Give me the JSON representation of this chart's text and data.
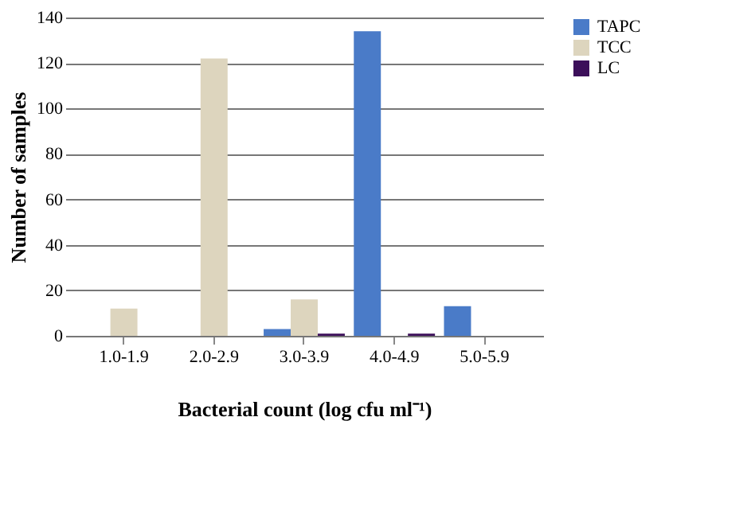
{
  "chart_data": {
    "type": "bar",
    "xlabel": "Bacterial count (log cfu ml⁻¹)",
    "ylabel": "Number of samples",
    "categories": [
      "1.0-1.9",
      "2.0-2.9",
      "3.0-3.9",
      "4.0-4.9",
      "5.0-5.9"
    ],
    "series": [
      {
        "name": "TAPC",
        "color": "#4a7bc8",
        "values": [
          0,
          0,
          3,
          134,
          13
        ]
      },
      {
        "name": "TCC",
        "color": "#ddd5be",
        "values": [
          12,
          122,
          16,
          0,
          0
        ]
      },
      {
        "name": "LC",
        "color": "#3c0f5a",
        "values": [
          0,
          0,
          1,
          1,
          0
        ]
      }
    ],
    "ylim": [
      0,
      140
    ],
    "yticks": [
      0,
      20,
      40,
      60,
      80,
      100,
      120,
      140
    ],
    "grid": "y",
    "legend": "right"
  }
}
